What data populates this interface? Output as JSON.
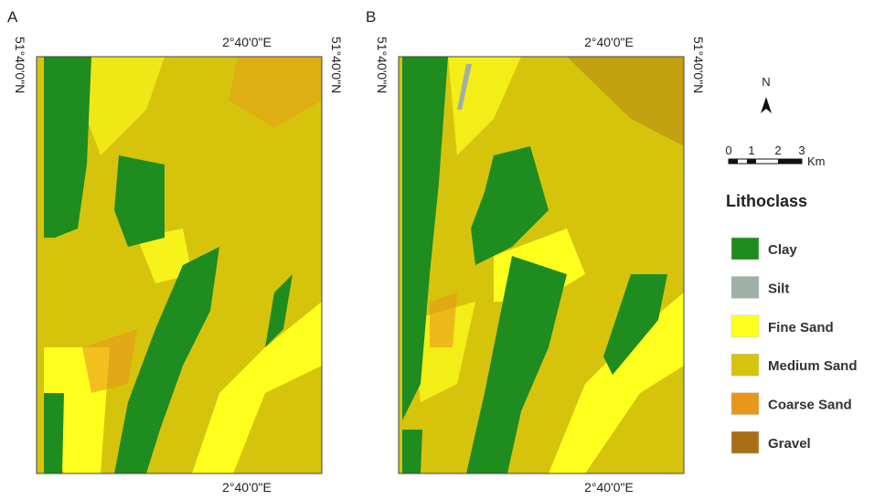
{
  "panels": [
    {
      "label": "A",
      "top_lon": "2°40'0\"E",
      "bottom_lon": "2°40'0\"E",
      "left_lat": "51°40'0\"N",
      "right_lat": "51°40'0\"N"
    },
    {
      "label": "B",
      "top_lon": "2°40'0\"E",
      "bottom_lon": "2°40'0\"E",
      "left_lat": "51°40'0\"N",
      "right_lat": "51°40'0\"N"
    }
  ],
  "north": "N",
  "scale_bar": {
    "ticks": [
      "0",
      "1",
      "2",
      "3"
    ],
    "unit": "Km"
  },
  "legend": {
    "title": "Lithoclass",
    "items": [
      {
        "name": "Clay",
        "color": "#1e8c1e"
      },
      {
        "name": "Silt",
        "color": "#9fb0a6"
      },
      {
        "name": "Fine Sand",
        "color": "#ffff1e"
      },
      {
        "name": "Medium Sand",
        "color": "#d6c40c"
      },
      {
        "name": "Coarse Sand",
        "color": "#e9961c"
      },
      {
        "name": "Gravel",
        "color": "#a86f16"
      }
    ]
  }
}
